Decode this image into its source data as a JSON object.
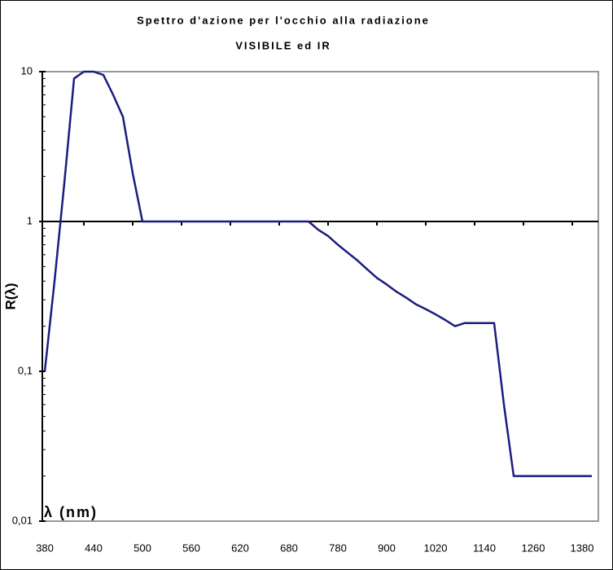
{
  "chart_data": {
    "type": "line",
    "title": [
      "Spettro d'azione per l'occhio alla radiazione",
      "VISIBILE ed IR"
    ],
    "y_label": "R(λ)",
    "x_label": "λ (nm)",
    "categories": [
      "380",
      null,
      null,
      null,
      null,
      "440",
      null,
      null,
      null,
      null,
      "500",
      null,
      null,
      null,
      null,
      "560",
      null,
      null,
      null,
      null,
      "620",
      null,
      null,
      null,
      null,
      "680",
      null,
      null,
      null,
      null,
      "780",
      null,
      null,
      null,
      null,
      "900",
      null,
      null,
      null,
      null,
      "1020",
      null,
      null,
      null,
      null,
      "1140",
      null,
      null,
      null,
      null,
      "1260",
      null,
      null,
      null,
      null,
      "1380",
      null
    ],
    "series": [
      {
        "name": "R(λ)",
        "color": "#1c1c80",
        "values": [
          0.1,
          0.4,
          1.8,
          9,
          10,
          10,
          9.5,
          7,
          5,
          2.1,
          1,
          1,
          1,
          1,
          1,
          1,
          1,
          1,
          1,
          1,
          1,
          1,
          1,
          1,
          1,
          1,
          1,
          1,
          0.88,
          0.8,
          0.7,
          0.62,
          0.55,
          0.48,
          0.42,
          0.38,
          0.34,
          0.31,
          0.28,
          0.26,
          0.24,
          0.22,
          0.2,
          0.21,
          0.21,
          0.21,
          0.21,
          0.06,
          0.02,
          0.02,
          0.02,
          0.02,
          0.02,
          0.02,
          0.02,
          0.02,
          0.02
        ]
      }
    ],
    "log_y": true,
    "ylim": [
      0.01,
      10
    ],
    "yticks": [
      {
        "value": 0.01,
        "label": "0,01"
      },
      {
        "value": 0.1,
        "label": "0,1"
      },
      1,
      10
    ]
  }
}
